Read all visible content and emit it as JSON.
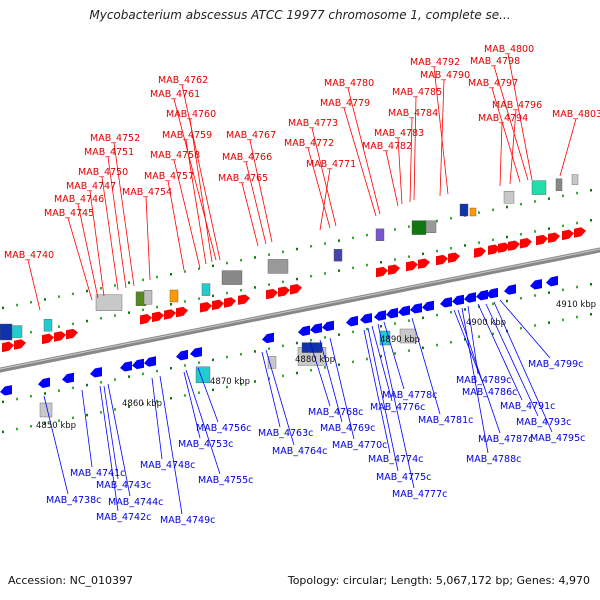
{
  "title": "Mycobacterium abscessus ATCC 19977 chromosome 1, complete se...",
  "footer": {
    "accession": "Accession: NC_010397",
    "summary": "Topology: circular; Length: 5,067,172 bp; Genes: 4,970"
  },
  "colors": {
    "forward": "#ff0000",
    "reverse": "#0000ff",
    "backbone": "#888888"
  },
  "scale_labels": [
    "4850 kbp",
    "4860 kbp",
    "4870 kbp",
    "4880 kbp",
    "4890 kbp",
    "4900 kbp",
    "4910 kbp"
  ],
  "top_genes": [
    "MAB_4740",
    "MAB_4745",
    "MAB_4746",
    "MAB_4747",
    "MAB_4750",
    "MAB_4751",
    "MAB_4752",
    "MAB_4754",
    "MAB_4757",
    "MAB_4758",
    "MAB_4759",
    "MAB_4760",
    "MAB_4761",
    "MAB_4762",
    "MAB_4765",
    "MAB_4766",
    "MAB_4767",
    "MAB_4771",
    "MAB_4772",
    "MAB_4773",
    "MAB_4779",
    "MAB_4780",
    "MAB_4782",
    "MAB_4783",
    "MAB_4784",
    "MAB_4785",
    "MAB_4790",
    "MAB_4792",
    "MAB_4794",
    "MAB_4796",
    "MAB_4797",
    "MAB_4798",
    "MAB_4800",
    "MAB_4803"
  ],
  "bottom_genes": [
    "MAB_4738c",
    "MAB_4741c",
    "MAB_4742c",
    "MAB_4743c",
    "MAB_4744c",
    "MAB_4748c",
    "MAB_4749c",
    "MAB_4753c",
    "MAB_4755c",
    "MAB_4756c",
    "MAB_4763c",
    "MAB_4764c",
    "MAB_4768c",
    "MAB_4769c",
    "MAB_4770c",
    "MAB_4774c",
    "MAB_4775c",
    "MAB_4776c",
    "MAB_4777c",
    "MAB_4778c",
    "MAB_4781c",
    "MAB_4786c",
    "MAB_4787c",
    "MAB_4788c",
    "MAB_4789c",
    "MAB_4791c",
    "MAB_4793c",
    "MAB_4795c",
    "MAB_4799c"
  ]
}
